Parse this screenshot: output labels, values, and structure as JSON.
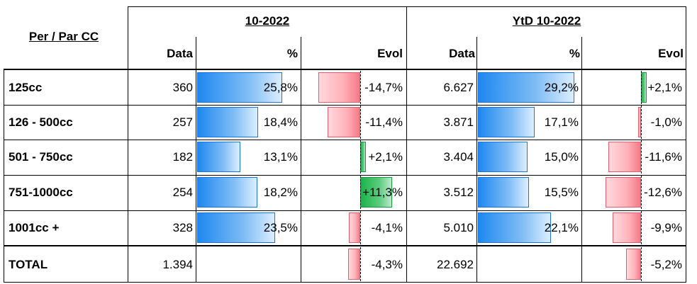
{
  "header": {
    "row_title": "Per / Par CC",
    "group_month": "10-2022",
    "group_ytd": "YtD 10-2022",
    "col_data": "Data",
    "col_pct": "%",
    "col_evol": "Evol"
  },
  "rows": [
    {
      "label": "125cc",
      "data_m": "360",
      "pct_m": "25,8%",
      "evol_m": "-14,7%",
      "data_y": "6.627",
      "pct_y": "29,2%",
      "evol_y": "+2,1%",
      "pct_m_val": 25.8,
      "evol_m_val": -14.7,
      "pct_y_val": 29.2,
      "evol_y_val": 2.1
    },
    {
      "label": "126 - 500cc",
      "data_m": "257",
      "pct_m": "18,4%",
      "evol_m": "-11,4%",
      "data_y": "3.871",
      "pct_y": "17,1%",
      "evol_y": "-1,0%",
      "pct_m_val": 18.4,
      "evol_m_val": -11.4,
      "pct_y_val": 17.1,
      "evol_y_val": -1.0
    },
    {
      "label": "501 - 750cc",
      "data_m": "182",
      "pct_m": "13,1%",
      "evol_m": "+2,1%",
      "data_y": "3.404",
      "pct_y": "15,0%",
      "evol_y": "-11,6%",
      "pct_m_val": 13.1,
      "evol_m_val": 2.1,
      "pct_y_val": 15.0,
      "evol_y_val": -11.6
    },
    {
      "label": "751-1000cc",
      "data_m": "254",
      "pct_m": "18,2%",
      "evol_m": "+11,3%",
      "data_y": "3.512",
      "pct_y": "15,5%",
      "evol_y": "-12,6%",
      "pct_m_val": 18.2,
      "evol_m_val": 11.3,
      "pct_y_val": 15.5,
      "evol_y_val": -12.6
    },
    {
      "label": "1001cc +",
      "data_m": "328",
      "pct_m": "23,5%",
      "evol_m": "-4,1%",
      "data_y": "5.010",
      "pct_y": "22,1%",
      "evol_y": "-9,9%",
      "pct_m_val": 23.5,
      "evol_m_val": -4.1,
      "pct_y_val": 22.1,
      "evol_y_val": -9.9
    }
  ],
  "total": {
    "label": "TOTAL",
    "data_m": "1.394",
    "evol_m": "-4,3%",
    "data_y": "22.692",
    "evol_y": "-5,2%",
    "evol_m_val": -4.3,
    "evol_y_val": -5.2
  },
  "colors": {
    "positive": "#1db34a",
    "negative": "#f47a87",
    "share": "#1e88f0"
  }
}
